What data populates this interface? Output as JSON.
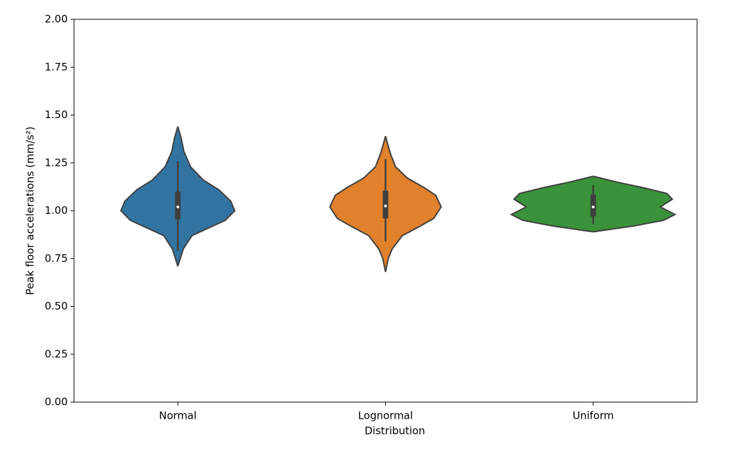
{
  "chart_data": {
    "type": "violin",
    "x_label": "Distribution",
    "y_label": "Peak floor accelerations (mm/s²)",
    "categories": [
      "Normal",
      "Lognormal",
      "Uniform"
    ],
    "ylim": [
      0,
      2
    ],
    "yticks": [
      {
        "value": 0,
        "label": "0.00"
      },
      {
        "value": 0.25,
        "label": "0.25"
      },
      {
        "value": 0.5,
        "label": "0.50"
      },
      {
        "value": 0.75,
        "label": "0.75"
      },
      {
        "value": 1,
        "label": "1.00"
      },
      {
        "value": 1.25,
        "label": "1.25"
      },
      {
        "value": 1.5,
        "label": "1.50"
      },
      {
        "value": 1.75,
        "label": "1.75"
      },
      {
        "value": 2,
        "label": "2.00"
      }
    ],
    "outline_color": "#3f3f3f",
    "violins": [
      {
        "color": "#3274a1",
        "y": [
          0.71,
          0.8,
          0.87,
          0.91,
          0.95,
          1.0,
          1.05,
          1.11,
          1.16,
          1.23,
          1.31,
          1.38,
          1.44
        ],
        "width": [
          0,
          0.026,
          0.068,
          0.148,
          0.229,
          0.274,
          0.255,
          0.197,
          0.123,
          0.061,
          0.029,
          0.016,
          0
        ],
        "whisker_low": 0.79,
        "q1": 0.955,
        "median": 1.02,
        "q3": 1.1,
        "whisker_high": 1.26
      },
      {
        "color": "#e1812c",
        "y": [
          0.68,
          0.75,
          0.8,
          0.87,
          0.92,
          0.96,
          1.02,
          1.08,
          1.12,
          1.17,
          1.23,
          1.3,
          1.35,
          1.39
        ],
        "width": [
          0,
          0.013,
          0.032,
          0.081,
          0.168,
          0.232,
          0.268,
          0.242,
          0.187,
          0.106,
          0.048,
          0.023,
          0.01,
          0
        ],
        "whisker_low": 0.84,
        "q1": 0.96,
        "median": 1.025,
        "q3": 1.105,
        "whisker_high": 1.27
      },
      {
        "color": "#3a923a",
        "y": [
          0.89,
          0.92,
          0.95,
          0.98,
          1.02,
          1.06,
          1.09,
          1.12,
          1.15,
          1.18
        ],
        "width": [
          0,
          0.194,
          0.339,
          0.394,
          0.323,
          0.381,
          0.355,
          0.242,
          0.113,
          0
        ],
        "whisker_low": 0.93,
        "q1": 0.97,
        "median": 1.02,
        "q3": 1.085,
        "whisker_high": 1.135
      }
    ]
  }
}
